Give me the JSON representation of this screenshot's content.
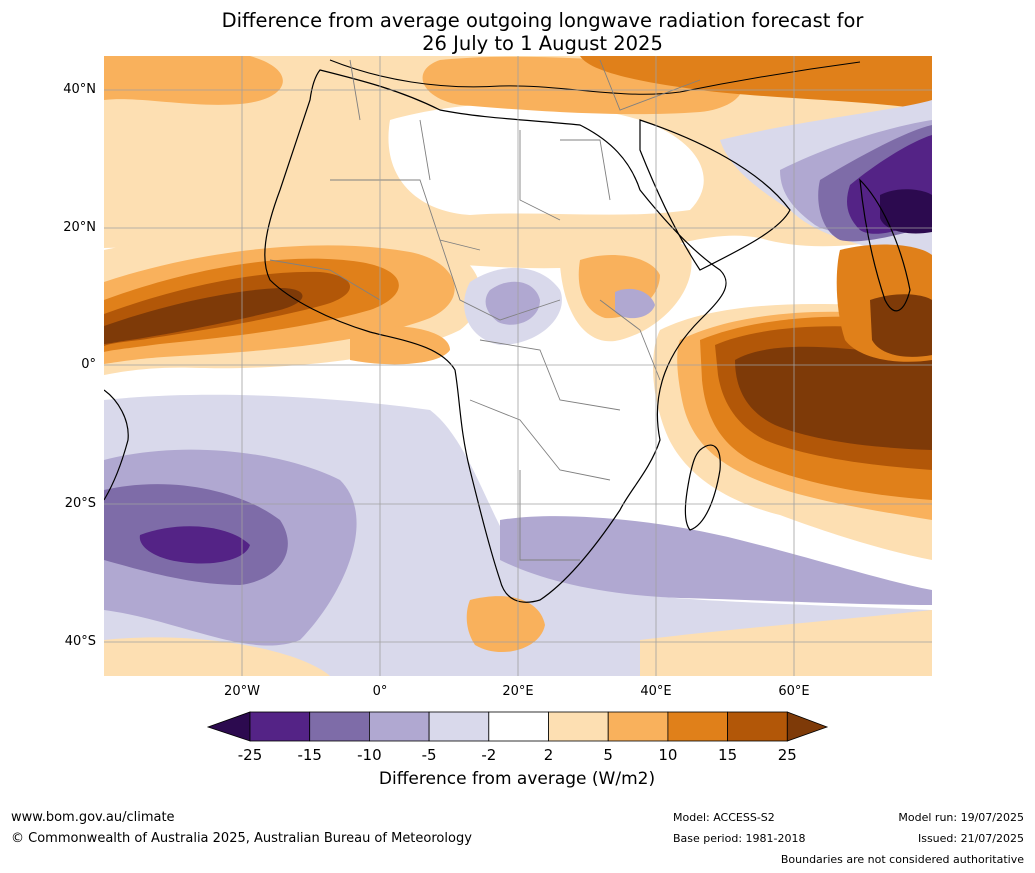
{
  "title": {
    "line1": "Difference from average outgoing longwave radiation forecast for",
    "line2": "26 July to 1 August 2025"
  },
  "axes": {
    "lat_ticks": [
      "40°N",
      "20°N",
      "0°",
      "20°S",
      "40°S"
    ],
    "lon_ticks": [
      "20°W",
      "0°",
      "20°E",
      "40°E",
      "60°E"
    ]
  },
  "colorbar": {
    "title": "Difference from average (W/m2)",
    "labels": [
      "-25",
      "-15",
      "-10",
      "-5",
      "-2",
      "2",
      "5",
      "10",
      "15",
      "25"
    ],
    "colors": [
      "#2c0a4f",
      "#542386",
      "#7e6ca8",
      "#b0a8d1",
      "#d9d9eb",
      "#ffffff",
      "#fddfb2",
      "#f9b15c",
      "#e0801a",
      "#b25708",
      "#7e3a08"
    ]
  },
  "footer": {
    "website": "www.bom.gov.au/climate",
    "copyright": "© Commonwealth of Australia 2025, Australian Bureau of Meteorology",
    "model": "Model: ACCESS-S2",
    "base_period": "Base period: 1981-2018",
    "model_run": "Model run: 19/07/2025",
    "issued": "Issued: 21/07/2025",
    "boundaries": "Boundaries are not considered authoritative"
  }
}
